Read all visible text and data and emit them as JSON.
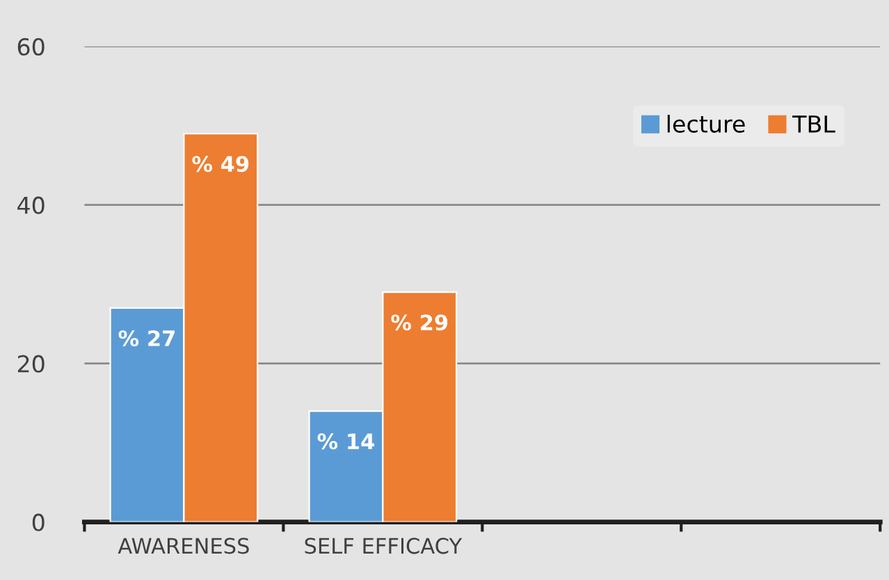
{
  "chart_data": {
    "type": "bar",
    "categories": [
      "AWARENESS",
      "SELF EFFICACY",
      null,
      null
    ],
    "series": [
      {
        "name": "lecture",
        "color": "#5b9bd5",
        "values": [
          27,
          14,
          null,
          null
        ],
        "value_labels": [
          "% 27",
          "% 14",
          null,
          null
        ]
      },
      {
        "name": "TBL",
        "color": "#ed7d31",
        "values": [
          49,
          29,
          null,
          null
        ],
        "value_labels": [
          "% 49",
          "% 29",
          null,
          null
        ]
      }
    ],
    "ylim": [
      0,
      60
    ],
    "yticks": [
      0,
      20,
      40,
      60
    ],
    "grid": "y",
    "legend": "top right"
  }
}
